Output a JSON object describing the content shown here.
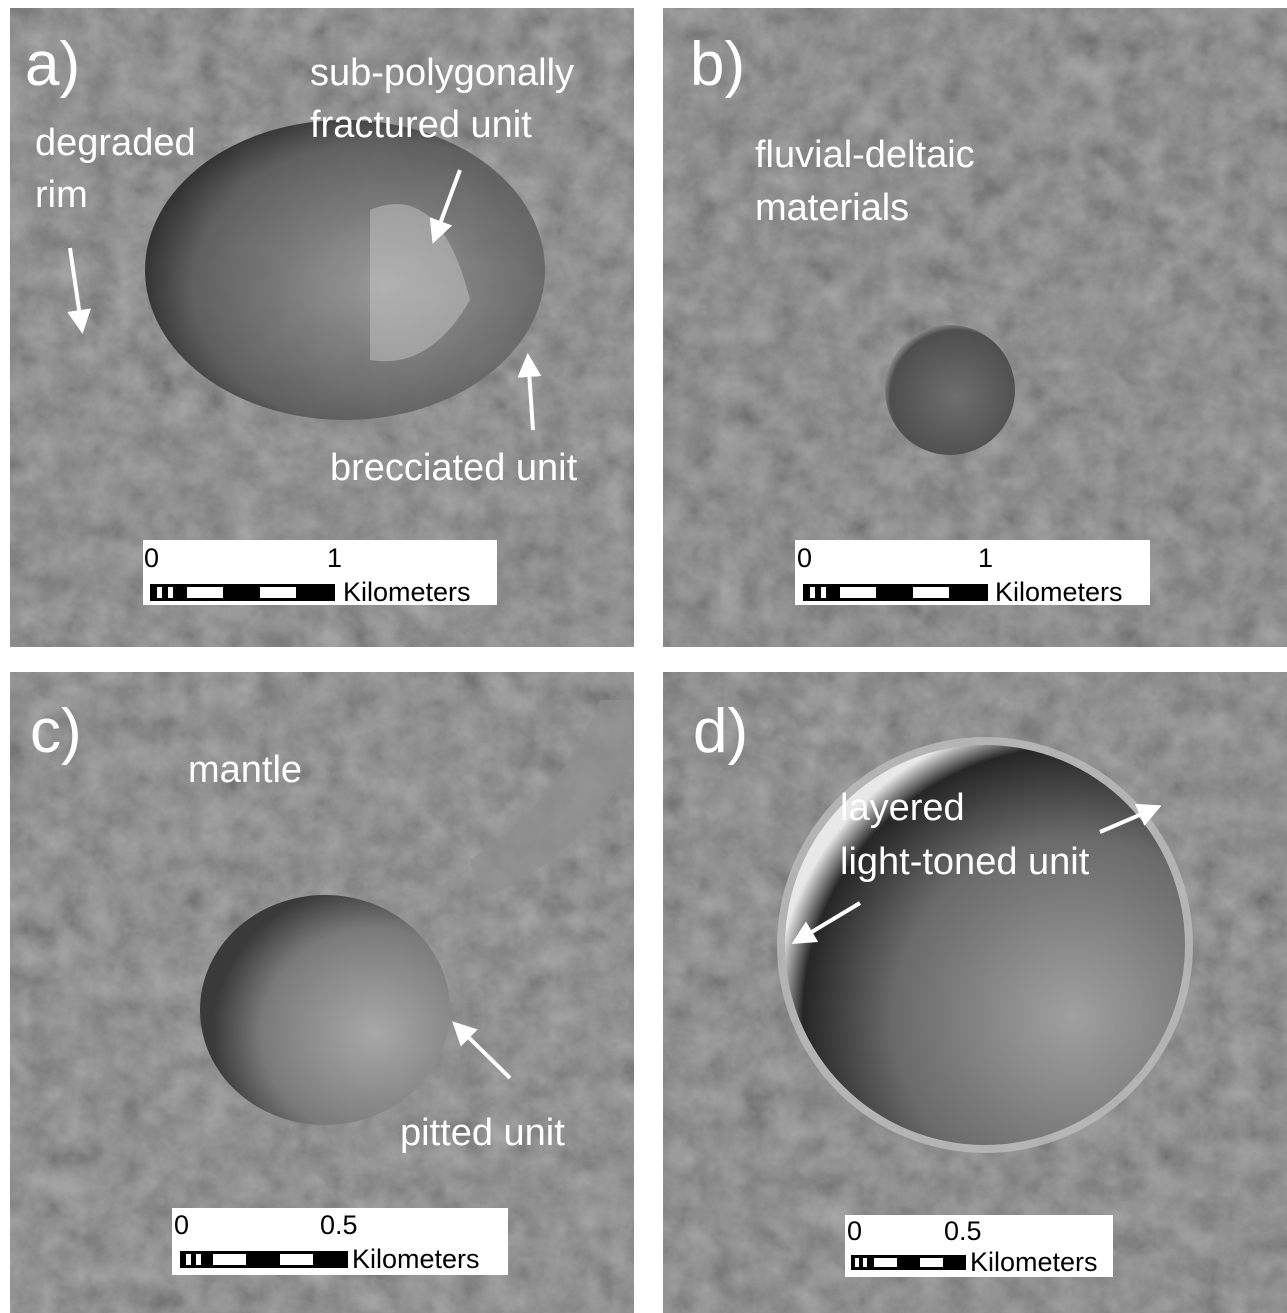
{
  "panels": [
    {
      "label": "a)",
      "annotations": [
        [
          "degraded",
          "rim"
        ],
        [
          "sub-polygonally",
          "fractured unit"
        ],
        [
          "brecciated unit"
        ]
      ],
      "scale_bar": {
        "ticks": [
          "0",
          "1"
        ],
        "unit": "Kilometers"
      }
    },
    {
      "label": "b)",
      "annotations": [
        [
          "fluvial-deltaic",
          "materials"
        ]
      ],
      "scale_bar": {
        "ticks": [
          "0",
          "1"
        ],
        "unit": "Kilometers"
      }
    },
    {
      "label": "c)",
      "annotations": [
        [
          "mantle"
        ],
        [
          "pitted unit"
        ]
      ],
      "scale_bar": {
        "ticks": [
          "0",
          "0.5"
        ],
        "unit": "Kilometers"
      }
    },
    {
      "label": "d)",
      "annotations": [
        [
          "layered",
          "light-toned unit"
        ]
      ],
      "scale_bar": {
        "ticks": [
          "0",
          "0.5"
        ],
        "unit": "Kilometers"
      }
    }
  ]
}
